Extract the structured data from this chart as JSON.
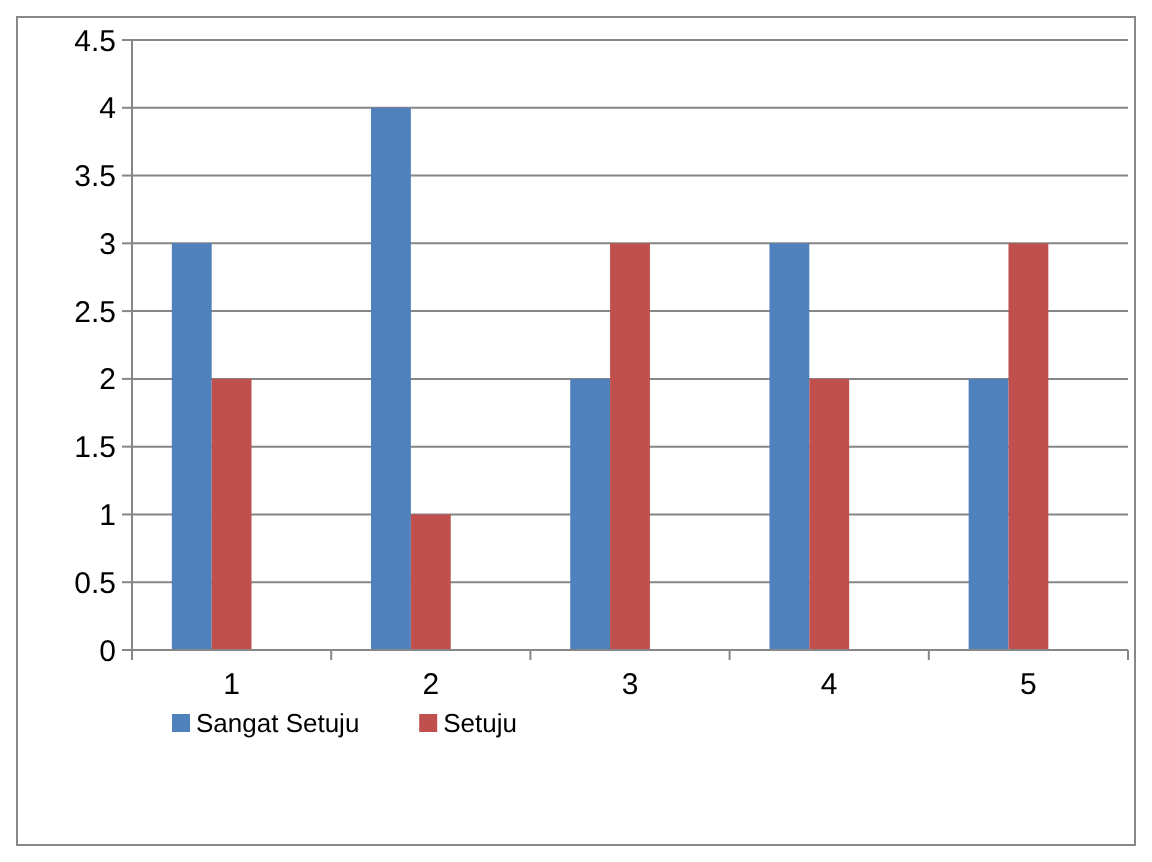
{
  "chart_data": {
    "type": "bar",
    "categories": [
      "1",
      "2",
      "3",
      "4",
      "5"
    ],
    "series": [
      {
        "name": "Sangat Setuju",
        "color": "#4f81bd",
        "values": [
          3,
          4,
          2,
          3,
          2
        ]
      },
      {
        "name": "Setuju",
        "color": "#c0504d",
        "values": [
          2,
          1,
          3,
          2,
          3
        ]
      }
    ],
    "ylim": [
      0,
      4.5
    ],
    "yticks": [
      0,
      {
        "value": 0.5,
        "label": "0.5"
      },
      1,
      {
        "value": 1.5,
        "label": "1.5"
      },
      2,
      {
        "value": 2.5,
        "label": "2.5"
      },
      3,
      {
        "value": 3.5,
        "label": "3.5"
      },
      4,
      {
        "value": 4.5,
        "label": "4.5"
      }
    ],
    "grid": "y",
    "legend": "bottom"
  }
}
